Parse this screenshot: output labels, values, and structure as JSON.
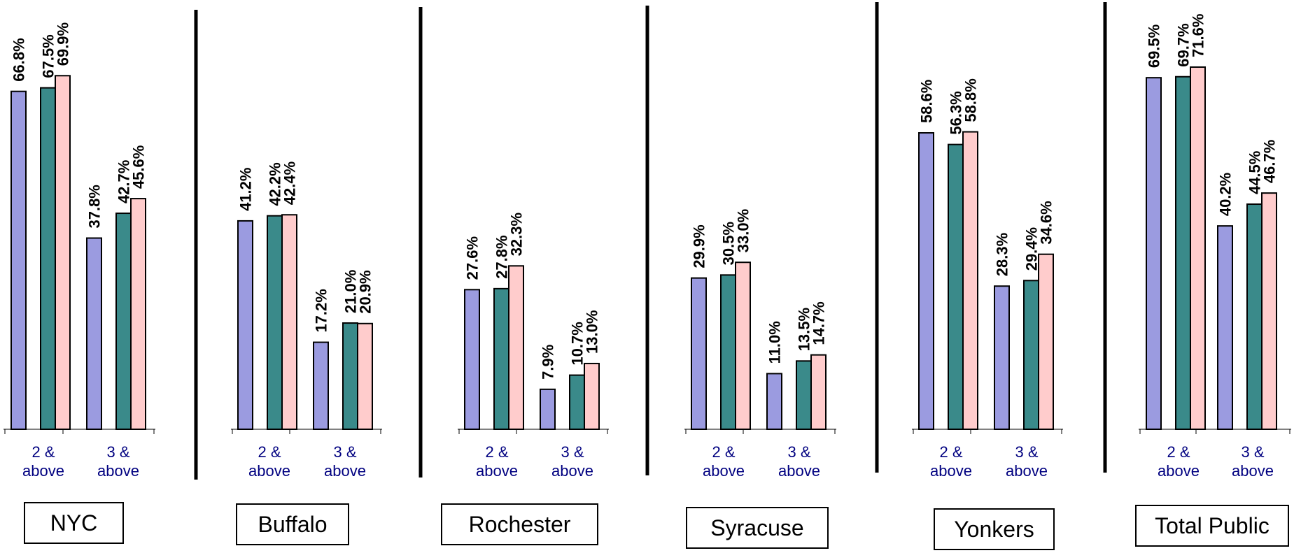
{
  "chart_data": {
    "type": "bar",
    "ylim": [
      0,
      80
    ],
    "grid": false,
    "legend": "none",
    "series_colors": [
      "#9b9be0",
      "#3a8a8a",
      "#ffcccc"
    ],
    "panels": [
      {
        "title": "NYC",
        "categories": [
          "2 & above",
          "3 & above"
        ],
        "series": [
          {
            "values": [
              66.8,
              37.8
            ]
          },
          {
            "values": [
              67.5,
              42.7
            ]
          },
          {
            "values": [
              69.9,
              45.6
            ]
          }
        ],
        "labels": [
          [
            "66.8%",
            "37.8%"
          ],
          [
            "67.5%",
            "42.7%"
          ],
          [
            "69.9%",
            "45.6%"
          ]
        ]
      },
      {
        "title": "Buffalo",
        "categories": [
          "2 & above",
          "3 & above"
        ],
        "series": [
          {
            "values": [
              41.2,
              17.2
            ]
          },
          {
            "values": [
              42.2,
              21.0
            ]
          },
          {
            "values": [
              42.4,
              20.9
            ]
          }
        ],
        "labels": [
          [
            "41.2%",
            "17.2%"
          ],
          [
            "42.2%",
            "21.0%"
          ],
          [
            "42.4%",
            "20.9%"
          ]
        ]
      },
      {
        "title": "Rochester",
        "categories": [
          "2 & above",
          "3 & above"
        ],
        "series": [
          {
            "values": [
              27.6,
              7.9
            ]
          },
          {
            "values": [
              27.8,
              10.7
            ]
          },
          {
            "values": [
              32.3,
              13.0
            ]
          }
        ],
        "labels": [
          [
            "27.6%",
            "7.9%"
          ],
          [
            "27.8%",
            "10.7%"
          ],
          [
            "32.3%",
            "13.0%"
          ]
        ]
      },
      {
        "title": "Syracuse",
        "categories": [
          "2 & above",
          "3 & above"
        ],
        "series": [
          {
            "values": [
              29.9,
              11.0
            ]
          },
          {
            "values": [
              30.5,
              13.5
            ]
          },
          {
            "values": [
              33.0,
              14.7
            ]
          }
        ],
        "labels": [
          [
            "29.9%",
            "11.0%"
          ],
          [
            "30.5%",
            "13.5%"
          ],
          [
            "33.0%",
            "14.7%"
          ]
        ]
      },
      {
        "title": "Yonkers",
        "categories": [
          "2 & above",
          "3 & above"
        ],
        "series": [
          {
            "values": [
              58.6,
              28.3
            ]
          },
          {
            "values": [
              56.3,
              29.4
            ]
          },
          {
            "values": [
              58.8,
              34.6
            ]
          }
        ],
        "labels": [
          [
            "58.6%",
            "28.3%"
          ],
          [
            "56.3%",
            "29.4%"
          ],
          [
            "58.8%",
            "34.6%"
          ]
        ]
      },
      {
        "title": "Total Public",
        "categories": [
          "2 & above",
          "3 & above"
        ],
        "series": [
          {
            "values": [
              69.5,
              40.2
            ]
          },
          {
            "values": [
              69.7,
              44.5
            ]
          },
          {
            "values": [
              71.6,
              46.7
            ]
          }
        ],
        "labels": [
          [
            "69.5%",
            "40.2%"
          ],
          [
            "69.7%",
            "44.5%"
          ],
          [
            "71.6%",
            "46.7%"
          ]
        ]
      }
    ]
  }
}
